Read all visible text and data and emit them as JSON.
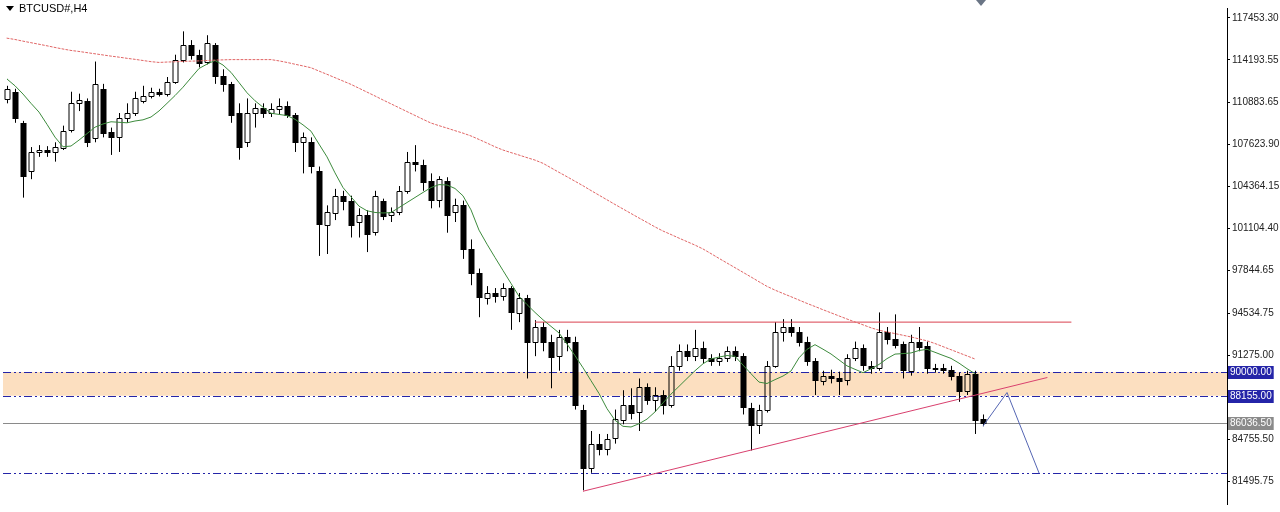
{
  "chart_data": {
    "type": "candlestick",
    "title": "BTCUSD#,H4",
    "color": "#000000",
    "marker": "none",
    "tick_labels": "y",
    "categories": [
      null,
      null,
      null,
      null,
      null,
      null,
      null,
      null,
      null,
      null,
      null,
      null,
      null,
      null,
      null,
      null,
      null,
      null,
      null,
      null,
      null,
      null,
      null,
      null,
      null,
      null,
      null,
      null,
      null,
      null,
      null,
      null,
      null,
      null,
      null,
      null,
      null,
      null,
      null,
      null,
      null,
      null,
      null,
      null,
      null,
      null,
      null,
      null,
      null,
      null,
      null,
      null,
      null,
      null,
      null,
      null,
      null,
      null,
      null,
      null,
      null,
      null,
      null,
      null,
      null,
      null,
      null,
      null,
      null,
      null,
      null,
      null,
      null,
      null,
      null,
      null,
      null,
      null,
      null,
      null,
      null,
      null,
      null,
      null,
      null,
      null,
      null,
      null,
      null,
      null,
      null,
      null,
      null,
      null,
      null,
      null,
      null,
      null,
      null,
      null,
      null,
      null,
      null,
      null,
      null,
      null,
      null,
      null,
      null,
      null,
      null,
      null,
      null,
      null,
      null,
      null,
      null,
      null,
      null,
      null,
      null,
      null,
      null,
      null,
      null,
      null,
      null,
      null,
      null,
      null,
      null,
      null,
      null,
      null,
      null,
      null,
      null,
      null,
      null,
      null,
      null,
      null,
      null,
      null,
      null,
      null,
      null,
      null,
      null,
      null,
      null,
      null,
      null
    ],
    "ohlc": [
      [
        111200,
        112180,
        110820,
        111950
      ],
      [
        111720,
        111950,
        109310,
        109690
      ],
      [
        109310,
        109460,
        103510,
        105170
      ],
      [
        105540,
        107430,
        104940,
        107050
      ],
      [
        107050,
        107580,
        106670,
        107200
      ],
      [
        107200,
        107500,
        106670,
        107050
      ],
      [
        107050,
        107800,
        106300,
        107430
      ],
      [
        107430,
        109090,
        107200,
        108710
      ],
      [
        108710,
        111720,
        108560,
        110820
      ],
      [
        110820,
        111570,
        110220,
        111050
      ],
      [
        110970,
        111200,
        107430,
        107800
      ],
      [
        108180,
        114060,
        107800,
        112330
      ],
      [
        111950,
        112330,
        108180,
        108560
      ],
      [
        108560,
        108940,
        106820,
        108180
      ],
      [
        108180,
        110070,
        107050,
        109690
      ],
      [
        109690,
        110820,
        109310,
        110070
      ],
      [
        110070,
        111720,
        109840,
        111200
      ],
      [
        111050,
        112180,
        110820,
        111420
      ],
      [
        111420,
        112030,
        111200,
        111720
      ],
      [
        111720,
        111950,
        111350,
        111570
      ],
      [
        111570,
        112860,
        111350,
        112480
      ],
      [
        112480,
        114590,
        112330,
        114210
      ],
      [
        114210,
        116400,
        113990,
        115340
      ],
      [
        115340,
        115720,
        114210,
        114590
      ],
      [
        114590,
        114970,
        113610,
        113990
      ],
      [
        113990,
        116100,
        113840,
        115490
      ],
      [
        115340,
        115490,
        112330,
        112930
      ],
      [
        112930,
        113460,
        111720,
        112330
      ],
      [
        112330,
        112480,
        109310,
        109920
      ],
      [
        110070,
        110820,
        106450,
        107430
      ],
      [
        107800,
        111200,
        107430,
        110070
      ],
      [
        110070,
        110820,
        108940,
        110440
      ],
      [
        110440,
        110820,
        109690,
        110070
      ],
      [
        110070,
        110820,
        109760,
        110370
      ],
      [
        110370,
        111200,
        109920,
        110590
      ],
      [
        110590,
        110970,
        109690,
        109920
      ],
      [
        109920,
        110070,
        107050,
        107800
      ],
      [
        107800,
        108560,
        105390,
        108180
      ],
      [
        107800,
        108180,
        105390,
        105920
      ],
      [
        105540,
        105920,
        98990,
        101400
      ],
      [
        101400,
        102910,
        99140,
        102380
      ],
      [
        102380,
        104190,
        101770,
        103660
      ],
      [
        103660,
        104040,
        102530,
        103280
      ],
      [
        103280,
        103660,
        100420,
        101400
      ],
      [
        101620,
        102680,
        100420,
        102150
      ],
      [
        102150,
        102530,
        99290,
        100640
      ],
      [
        100870,
        104040,
        100570,
        103660
      ],
      [
        103280,
        103430,
        101770,
        102150
      ],
      [
        102150,
        102750,
        101620,
        102380
      ],
      [
        102380,
        104410,
        102150,
        104040
      ],
      [
        104040,
        107050,
        103810,
        106300
      ],
      [
        106300,
        107580,
        105540,
        106150
      ],
      [
        106070,
        106450,
        104040,
        104790
      ],
      [
        104790,
        105390,
        102680,
        103280
      ],
      [
        103280,
        105170,
        102750,
        104940
      ],
      [
        104790,
        105090,
        100790,
        102150
      ],
      [
        102380,
        103430,
        101620,
        102910
      ],
      [
        102910,
        103280,
        98760,
        99510
      ],
      [
        99510,
        100270,
        96720,
        97630
      ],
      [
        97630,
        98010,
        94240,
        95740
      ],
      [
        95740,
        96650,
        95220,
        96120
      ],
      [
        96120,
        96500,
        95370,
        95900
      ],
      [
        95900,
        96870,
        95520,
        96500
      ],
      [
        96500,
        96650,
        93260,
        94610
      ],
      [
        94610,
        96120,
        93860,
        95740
      ],
      [
        95740,
        95970,
        89490,
        92350
      ],
      [
        92350,
        94010,
        91220,
        93480
      ],
      [
        93480,
        93860,
        91600,
        92350
      ],
      [
        92350,
        92880,
        88730,
        91220
      ],
      [
        91220,
        93260,
        90090,
        92730
      ],
      [
        92730,
        93260,
        91600,
        92350
      ],
      [
        92350,
        92730,
        87080,
        87450
      ],
      [
        87080,
        87450,
        80820,
        82550
      ],
      [
        82550,
        85420,
        82180,
        84440
      ],
      [
        84440,
        85190,
        83530,
        84060
      ],
      [
        84060,
        85190,
        83530,
        84810
      ],
      [
        84810,
        87080,
        84440,
        86320
      ],
      [
        86320,
        88580,
        85940,
        87450
      ],
      [
        87450,
        88730,
        86320,
        86850
      ],
      [
        86850,
        89490,
        85420,
        88810
      ],
      [
        88810,
        89110,
        87450,
        87830
      ],
      [
        87830,
        88810,
        86920,
        88210
      ],
      [
        88210,
        88580,
        86700,
        87450
      ],
      [
        87450,
        91220,
        87230,
        90470
      ],
      [
        90470,
        92130,
        90090,
        91600
      ],
      [
        91600,
        92130,
        90840,
        91220
      ],
      [
        91220,
        93260,
        90840,
        91820
      ],
      [
        91820,
        92350,
        90690,
        91070
      ],
      [
        91070,
        91370,
        90470,
        90840
      ],
      [
        90840,
        91450,
        90470,
        91070
      ],
      [
        91070,
        91970,
        90770,
        91600
      ],
      [
        91600,
        91970,
        90840,
        91220
      ],
      [
        91220,
        91450,
        86700,
        87230
      ],
      [
        87230,
        87600,
        83910,
        85940
      ],
      [
        85940,
        87450,
        85190,
        87080
      ],
      [
        87080,
        90840,
        86850,
        90470
      ],
      [
        90470,
        93860,
        90320,
        93110
      ],
      [
        93110,
        94090,
        92350,
        93480
      ],
      [
        93480,
        94090,
        92730,
        93110
      ],
      [
        93110,
        93480,
        91970,
        92350
      ],
      [
        92350,
        92730,
        90470,
        90840
      ],
      [
        90840,
        91070,
        88210,
        89340
      ],
      [
        89340,
        90090,
        88960,
        89710
      ],
      [
        89710,
        90170,
        89110,
        89560
      ],
      [
        89560,
        90020,
        88210,
        89340
      ],
      [
        89340,
        91370,
        88960,
        91070
      ],
      [
        91070,
        92350,
        90840,
        91820
      ],
      [
        91820,
        92130,
        90090,
        90470
      ],
      [
        90470,
        90840,
        89860,
        90320
      ],
      [
        90320,
        94610,
        90090,
        93110
      ],
      [
        93110,
        93480,
        92130,
        92580
      ],
      [
        92580,
        94460,
        91820,
        92130
      ],
      [
        92130,
        92350,
        89490,
        90090
      ],
      [
        90090,
        92880,
        89710,
        92350
      ],
      [
        92350,
        93480,
        91600,
        91970
      ],
      [
        91970,
        92350,
        89860,
        90240
      ],
      [
        90240,
        90620,
        89940,
        90320
      ],
      [
        90320,
        90620,
        89860,
        90170
      ],
      [
        90170,
        90470,
        89340,
        89710
      ],
      [
        89710,
        89940,
        87680,
        88580
      ],
      [
        88580,
        90090,
        88210,
        89860
      ],
      [
        89860,
        90090,
        85190,
        86320
      ],
      [
        86320,
        86700,
        85790,
        86040
      ],
      null,
      null,
      null,
      null,
      null,
      null,
      null,
      null,
      null,
      null,
      null,
      null,
      null,
      null,
      null,
      null,
      null,
      null,
      null,
      null,
      null,
      null,
      null,
      null,
      null,
      null,
      null,
      null,
      null,
      null
    ],
    "series": [
      {
        "type": "line",
        "color": "#e06666",
        "line_style": "dotted",
        "values": [
          115870,
          115770,
          115640,
          115520,
          115400,
          115280,
          115150,
          115030,
          114920,
          114840,
          114750,
          114660,
          114570,
          114480,
          114400,
          114310,
          114230,
          114140,
          114050,
          113990,
          114020,
          114040,
          114070,
          114090,
          114110,
          114140,
          114170,
          114190,
          114210,
          114210,
          114210,
          114210,
          114210,
          114210,
          114110,
          113990,
          113850,
          113720,
          113580,
          113320,
          113070,
          112810,
          112550,
          112290,
          111990,
          111690,
          111390,
          111080,
          110780,
          110480,
          110180,
          109880,
          109580,
          109290,
          109090,
          108900,
          108700,
          108510,
          108290,
          108020,
          107740,
          107450,
          107200,
          107000,
          106810,
          106610,
          106420,
          106170,
          105820,
          105470,
          105130,
          104780,
          104430,
          104060,
          103700,
          103340,
          102980,
          102630,
          102280,
          101930,
          101590,
          101240,
          100920,
          100650,
          100370,
          100100,
          99830,
          99530,
          99170,
          98800,
          98440,
          98080,
          97720,
          97360,
          96990,
          96630,
          96340,
          96080,
          95830,
          95570,
          95310,
          95070,
          94820,
          94580,
          94340,
          94100,
          93870,
          93650,
          93420,
          93230,
          93100,
          92970,
          92840,
          92710,
          92560,
          92410,
          92200,
          91960,
          91720,
          91480,
          91240,
          91000,
          null,
          null,
          null,
          null,
          null,
          null,
          null,
          null,
          null,
          null,
          null,
          null,
          null,
          null,
          null,
          null,
          null,
          null,
          null,
          null,
          null,
          null,
          null,
          null,
          null,
          null,
          null,
          null,
          null,
          null,
          null
        ]
      },
      {
        "type": "line",
        "color": "#3d8b3d",
        "values": [
          112700,
          112180,
          111540,
          110820,
          110140,
          109190,
          108200,
          107450,
          107510,
          107970,
          108470,
          108970,
          109220,
          109390,
          109350,
          109310,
          109450,
          109540,
          109760,
          110230,
          110820,
          111420,
          112070,
          112800,
          113520,
          113860,
          114140,
          113790,
          113220,
          112430,
          111640,
          111020,
          110520,
          110050,
          109960,
          109870,
          109580,
          109150,
          108660,
          107660,
          106670,
          105430,
          104290,
          103570,
          102850,
          102490,
          102360,
          102320,
          102350,
          102740,
          103130,
          103520,
          103910,
          104290,
          104520,
          104490,
          104220,
          103650,
          102560,
          100990,
          99900,
          98870,
          97860,
          96860,
          95860,
          95220,
          94610,
          94040,
          93530,
          93020,
          92160,
          91260,
          90320,
          89320,
          88330,
          87150,
          86250,
          85780,
          85730,
          85980,
          86340,
          86900,
          87600,
          88280,
          88880,
          89490,
          90090,
          90630,
          91010,
          91150,
          91270,
          91210,
          90530,
          89860,
          89210,
          89100,
          89400,
          89680,
          90070,
          91090,
          91750,
          92110,
          91760,
          91390,
          90930,
          90470,
          90200,
          89940,
          90240,
          90580,
          91030,
          91380,
          91420,
          91470,
          91660,
          91750,
          91520,
          91280,
          91050,
          90680,
          90250,
          89860,
          null,
          null,
          null,
          null,
          null,
          null,
          null,
          null,
          null,
          null,
          null,
          null,
          null,
          null,
          null,
          null,
          null,
          null,
          null,
          null,
          null,
          null,
          null,
          null,
          null,
          null,
          null,
          null,
          null,
          null,
          null
        ]
      },
      {
        "type": "line",
        "color": "#d9404f",
        "values": [
          null,
          null,
          null,
          null,
          null,
          null,
          null,
          null,
          null,
          null,
          null,
          null,
          null,
          null,
          null,
          null,
          null,
          null,
          null,
          null,
          null,
          null,
          null,
          null,
          null,
          null,
          null,
          null,
          null,
          null,
          null,
          null,
          null,
          null,
          null,
          null,
          null,
          null,
          null,
          null,
          null,
          null,
          null,
          null,
          null,
          null,
          null,
          null,
          null,
          null,
          null,
          null,
          null,
          null,
          null,
          null,
          null,
          null,
          null,
          null,
          null,
          null,
          null,
          null,
          null,
          null,
          93860,
          null,
          null,
          null,
          null,
          null,
          null,
          null,
          null,
          null,
          null,
          null,
          null,
          null,
          null,
          null,
          null,
          null,
          null,
          null,
          null,
          null,
          null,
          null,
          null,
          null,
          null,
          null,
          null,
          null,
          null,
          null,
          null,
          null,
          null,
          null,
          null,
          null,
          null,
          null,
          null,
          null,
          null,
          null,
          null,
          null,
          null,
          null,
          null,
          null,
          null,
          null,
          null,
          null,
          null,
          null,
          null,
          null,
          null,
          null,
          null,
          null,
          null,
          null,
          null,
          null,
          null,
          93860,
          null,
          null,
          null,
          null,
          null,
          null,
          null,
          null,
          null,
          null,
          null,
          null,
          null,
          null,
          null,
          null,
          null,
          null,
          null
        ]
      },
      {
        "type": "line",
        "color": "#d9406e",
        "values": [
          null,
          null,
          null,
          null,
          null,
          null,
          null,
          null,
          null,
          null,
          null,
          null,
          null,
          null,
          null,
          null,
          null,
          null,
          null,
          null,
          null,
          null,
          null,
          null,
          null,
          null,
          null,
          null,
          null,
          null,
          null,
          null,
          null,
          null,
          null,
          null,
          null,
          null,
          null,
          null,
          null,
          null,
          null,
          null,
          null,
          null,
          null,
          null,
          null,
          null,
          null,
          null,
          null,
          null,
          null,
          null,
          null,
          null,
          null,
          null,
          null,
          null,
          null,
          null,
          null,
          null,
          null,
          null,
          null,
          null,
          null,
          null,
          80750,
          null,
          null,
          null,
          null,
          null,
          null,
          null,
          null,
          null,
          null,
          null,
          null,
          null,
          null,
          null,
          null,
          null,
          null,
          null,
          null,
          null,
          null,
          null,
          null,
          null,
          null,
          null,
          null,
          null,
          null,
          null,
          null,
          null,
          null,
          null,
          null,
          null,
          null,
          null,
          null,
          null,
          null,
          null,
          null,
          null,
          null,
          null,
          null,
          null,
          null,
          null,
          null,
          null,
          null,
          null,
          null,
          null,
          89560,
          null,
          null,
          null,
          null,
          null,
          null,
          null,
          null,
          null,
          null,
          null,
          null,
          null,
          null,
          null,
          null,
          null,
          null,
          null,
          null,
          null,
          null
        ]
      },
      {
        "type": "line",
        "color": "#5566b3",
        "values": [
          null,
          null,
          null,
          null,
          null,
          null,
          null,
          null,
          null,
          null,
          null,
          null,
          null,
          null,
          null,
          null,
          null,
          null,
          null,
          null,
          null,
          null,
          null,
          null,
          null,
          null,
          null,
          null,
          null,
          null,
          null,
          null,
          null,
          null,
          null,
          null,
          null,
          null,
          null,
          null,
          null,
          null,
          null,
          null,
          null,
          null,
          null,
          null,
          null,
          null,
          null,
          null,
          null,
          null,
          null,
          null,
          null,
          null,
          null,
          null,
          null,
          null,
          null,
          null,
          null,
          null,
          null,
          null,
          null,
          null,
          null,
          null,
          null,
          null,
          null,
          null,
          null,
          null,
          null,
          null,
          null,
          null,
          null,
          null,
          null,
          null,
          null,
          null,
          null,
          null,
          null,
          null,
          null,
          null,
          null,
          null,
          null,
          null,
          null,
          null,
          null,
          null,
          null,
          null,
          null,
          null,
          null,
          null,
          null,
          null,
          null,
          null,
          null,
          null,
          null,
          null,
          null,
          null,
          null,
          null,
          null,
          null,
          85800,
          null,
          null,
          88400,
          null,
          null,
          null,
          82170,
          null,
          null,
          null,
          null,
          null,
          null,
          null,
          null,
          null,
          null,
          null,
          null,
          null,
          null,
          null,
          null,
          null,
          null,
          null,
          null,
          null,
          null,
          null
        ]
      }
    ],
    "ylim": [
      79760,
      118210
    ],
    "yticks": [
      {
        "value": 117453.3,
        "label": "117453.30"
      },
      {
        "value": 114193.55,
        "label": "114193.55"
      },
      {
        "value": 110883.65,
        "label": "110883.65"
      },
      {
        "value": 107623.9,
        "label": "107623.90"
      },
      {
        "value": 104364.15,
        "label": "104364.15"
      },
      {
        "value": 101104.4,
        "label": "101104.40"
      },
      {
        "value": 97844.65,
        "label": "97844.65"
      },
      {
        "value": 94534.75,
        "label": "94534.75"
      },
      {
        "value": 91275,
        "label": "91275.00"
      },
      {
        "value": 84755.5,
        "label": "84755.50"
      },
      {
        "value": 81495.75,
        "label": "81495.75"
      }
    ],
    "ref_lines": [
      {
        "axis": "y",
        "value": 90000,
        "label": "90000.00",
        "color": "#2424a8",
        "line_style": "dashed"
      },
      {
        "axis": "y",
        "value": 88155,
        "label": "88155.00",
        "color": "#2424a8",
        "line_style": "dashed"
      },
      {
        "axis": "y",
        "value": 86036.5,
        "label": "86036.50",
        "color": "#8a8a8a"
      },
      {
        "axis": "y",
        "value": 82170,
        "color": "#2424a8",
        "line_style": "dashed"
      }
    ],
    "bands": [
      {
        "axis": "y",
        "from": 88155,
        "to": 90000,
        "color": "#fcdfc0"
      }
    ]
  }
}
